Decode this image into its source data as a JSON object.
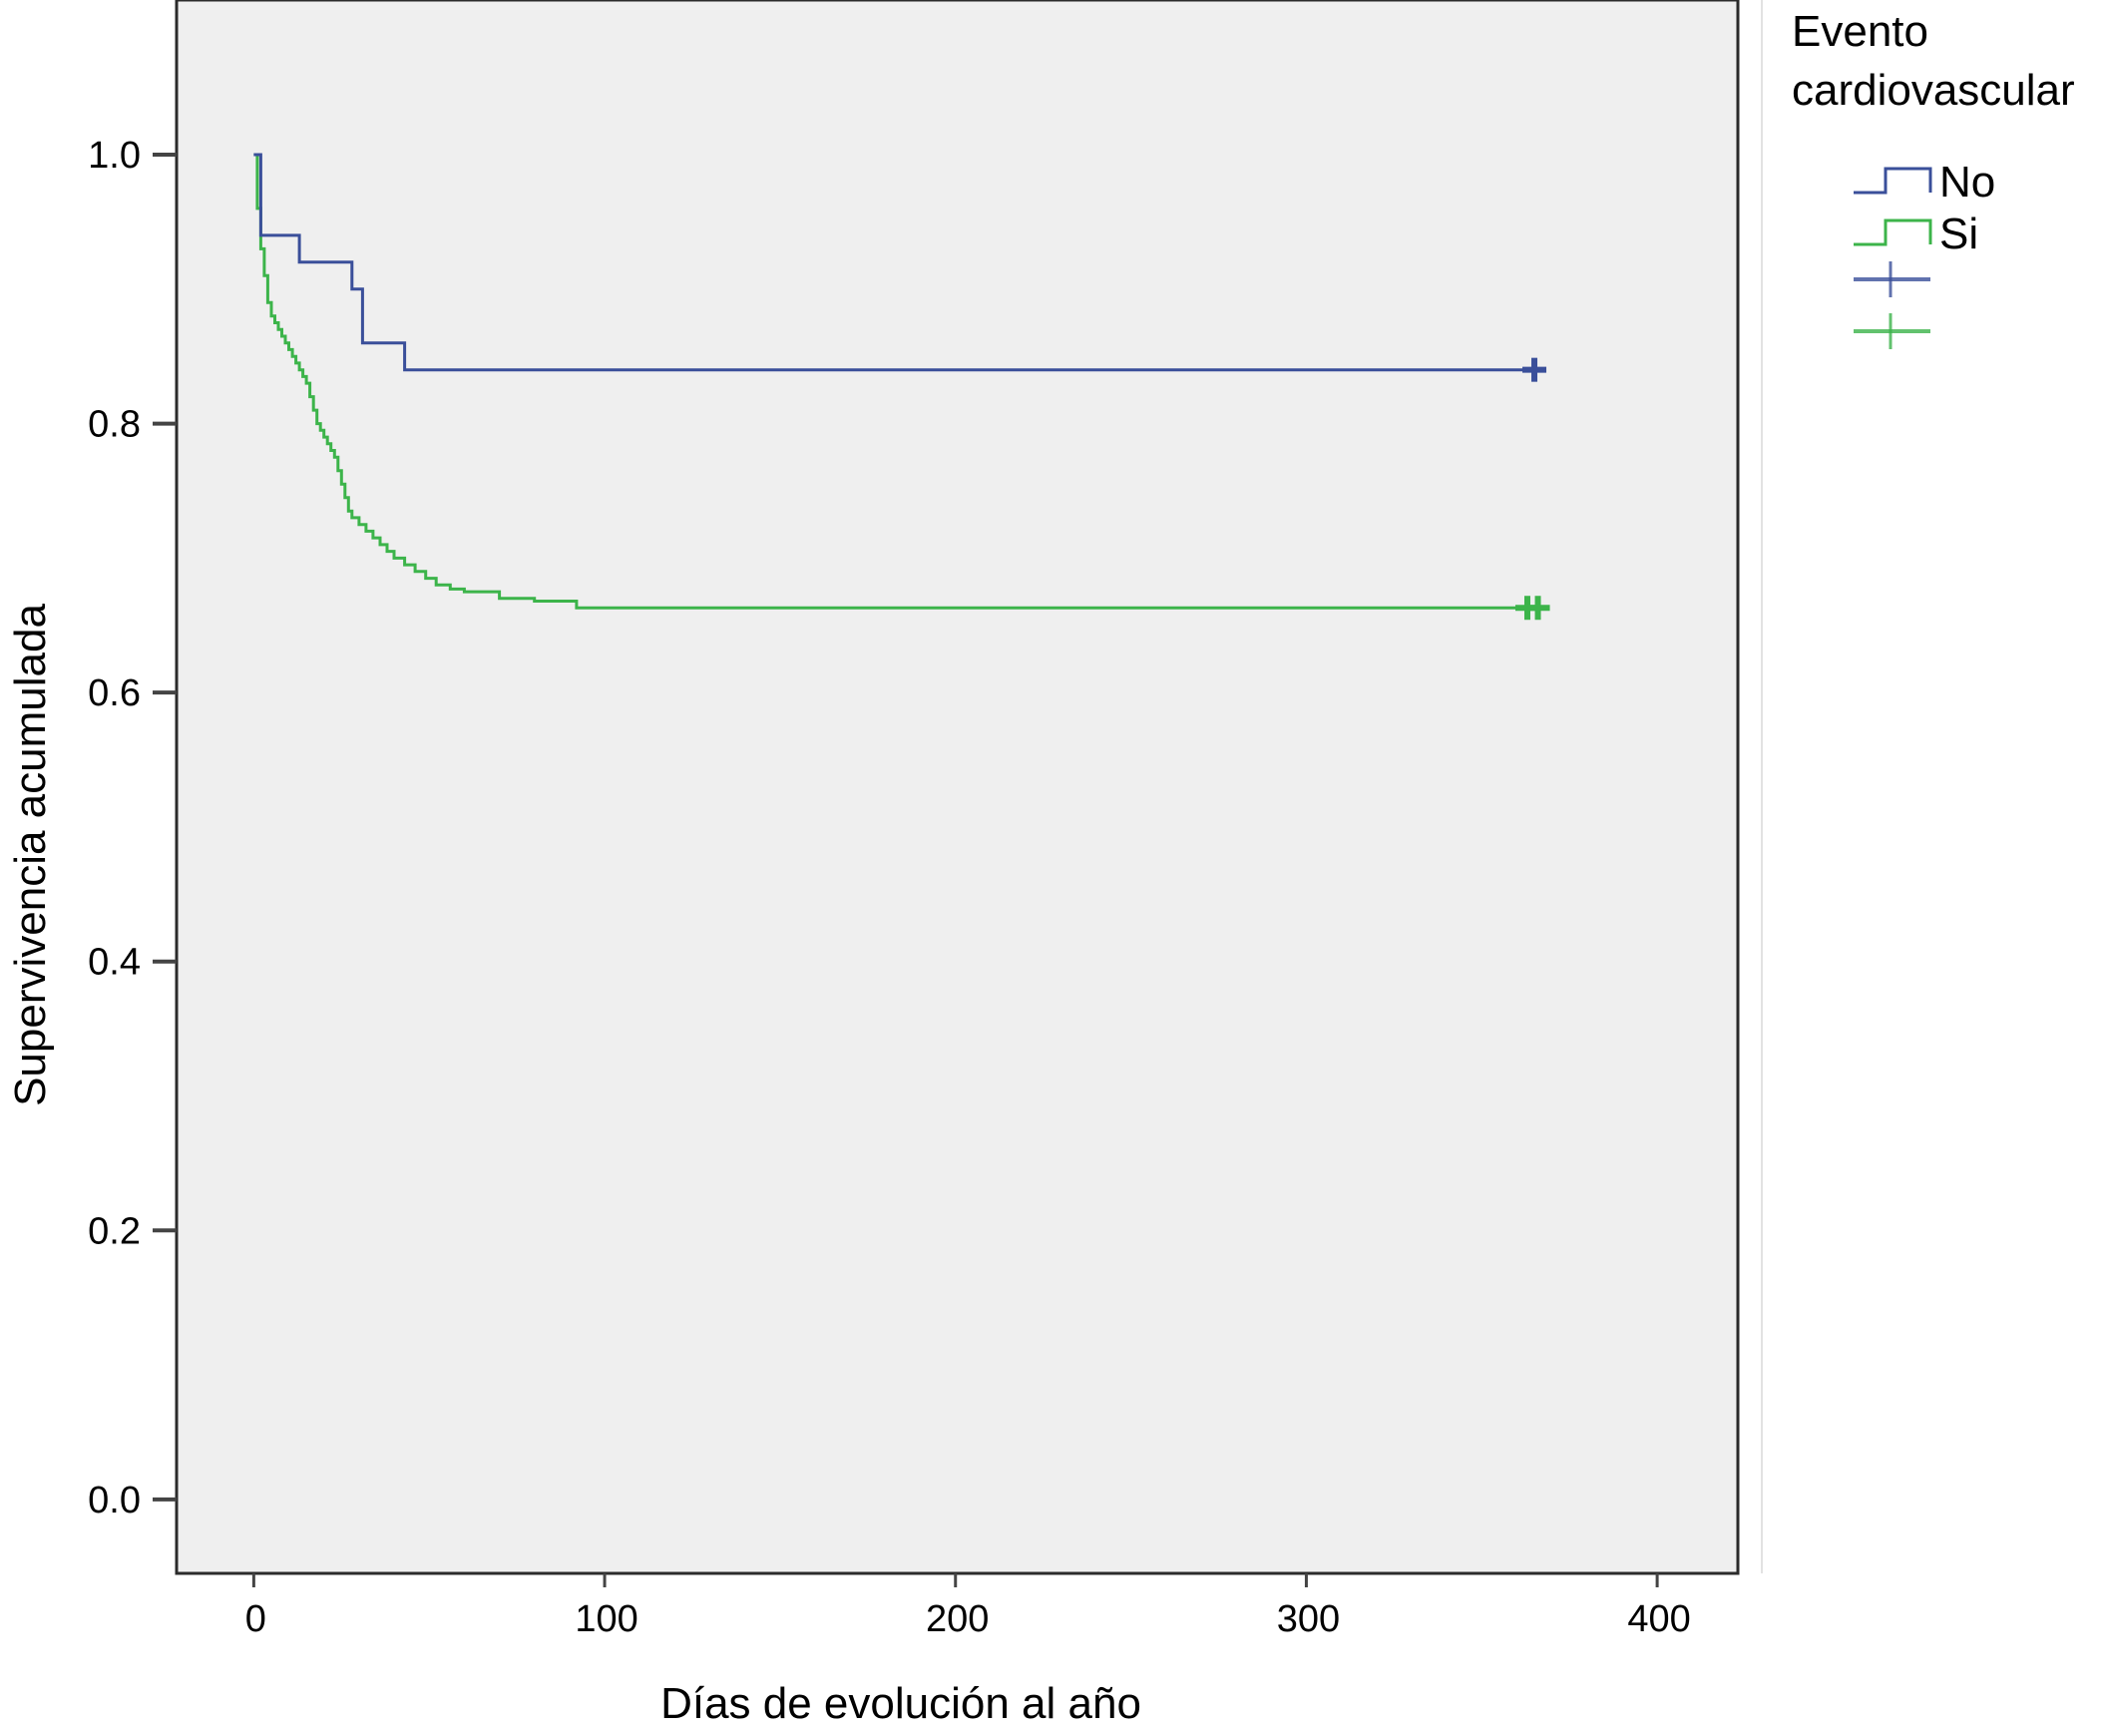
{
  "chart_data": {
    "type": "line",
    "subtype": "kaplan-meier step",
    "title": "",
    "xlabel": "Días de evolución al año",
    "ylabel": "Supervivencia acumulada",
    "xlim": [
      -22,
      423
    ],
    "ylim": [
      -0.055,
      1.115
    ],
    "x_ticks": [
      0,
      100,
      200,
      300,
      400
    ],
    "x_tick_labels": [
      "0",
      "100",
      "200",
      "300",
      "400"
    ],
    "y_ticks": [
      0.0,
      0.2,
      0.4,
      0.6,
      0.8,
      1.0
    ],
    "y_tick_labels": [
      "0.0",
      "0.2",
      "0.4",
      "0.6",
      "0.8",
      "1.0"
    ],
    "grid": false,
    "plot_background": "#efefef",
    "legend_placement": "right",
    "legend": {
      "title": "Evento cardiovascular",
      "title_lines": [
        "Evento",
        "cardiovascular"
      ],
      "entries": [
        {
          "label": "No",
          "kind": "line",
          "color": "#3a4f9a"
        },
        {
          "label": "Si",
          "kind": "line",
          "color": "#3cb44a"
        },
        {
          "label": "",
          "kind": "censored",
          "color": "#3a4f9a"
        },
        {
          "label": "",
          "kind": "censored",
          "color": "#3cb44a"
        }
      ]
    },
    "series": [
      {
        "name": "No",
        "color": "#3a4f9a",
        "steps": [
          [
            0,
            1.0
          ],
          [
            2,
            0.94
          ],
          [
            13,
            0.92
          ],
          [
            28,
            0.9
          ],
          [
            31,
            0.86
          ],
          [
            43,
            0.84
          ],
          [
            365,
            0.84
          ]
        ],
        "censored": [
          [
            365,
            0.84
          ]
        ]
      },
      {
        "name": "Si",
        "color": "#3cb44a",
        "steps": [
          [
            0,
            1.0
          ],
          [
            1,
            0.96
          ],
          [
            2,
            0.93
          ],
          [
            3,
            0.91
          ],
          [
            4,
            0.89
          ],
          [
            5,
            0.88
          ],
          [
            6,
            0.875
          ],
          [
            7,
            0.87
          ],
          [
            8,
            0.865
          ],
          [
            9,
            0.86
          ],
          [
            10,
            0.855
          ],
          [
            11,
            0.85
          ],
          [
            12,
            0.845
          ],
          [
            13,
            0.84
          ],
          [
            14,
            0.835
          ],
          [
            15,
            0.83
          ],
          [
            16,
            0.82
          ],
          [
            17,
            0.81
          ],
          [
            18,
            0.8
          ],
          [
            19,
            0.795
          ],
          [
            20,
            0.79
          ],
          [
            21,
            0.785
          ],
          [
            22,
            0.78
          ],
          [
            23,
            0.775
          ],
          [
            24,
            0.765
          ],
          [
            25,
            0.755
          ],
          [
            26,
            0.745
          ],
          [
            27,
            0.735
          ],
          [
            28,
            0.73
          ],
          [
            30,
            0.725
          ],
          [
            32,
            0.72
          ],
          [
            34,
            0.715
          ],
          [
            36,
            0.71
          ],
          [
            38,
            0.705
          ],
          [
            40,
            0.7
          ],
          [
            43,
            0.695
          ],
          [
            46,
            0.69
          ],
          [
            49,
            0.685
          ],
          [
            52,
            0.68
          ],
          [
            56,
            0.677
          ],
          [
            60,
            0.675
          ],
          [
            70,
            0.67
          ],
          [
            80,
            0.668
          ],
          [
            92,
            0.663
          ],
          [
            365,
            0.663
          ]
        ],
        "censored": [
          [
            363,
            0.663
          ],
          [
            366,
            0.663
          ]
        ]
      }
    ]
  }
}
